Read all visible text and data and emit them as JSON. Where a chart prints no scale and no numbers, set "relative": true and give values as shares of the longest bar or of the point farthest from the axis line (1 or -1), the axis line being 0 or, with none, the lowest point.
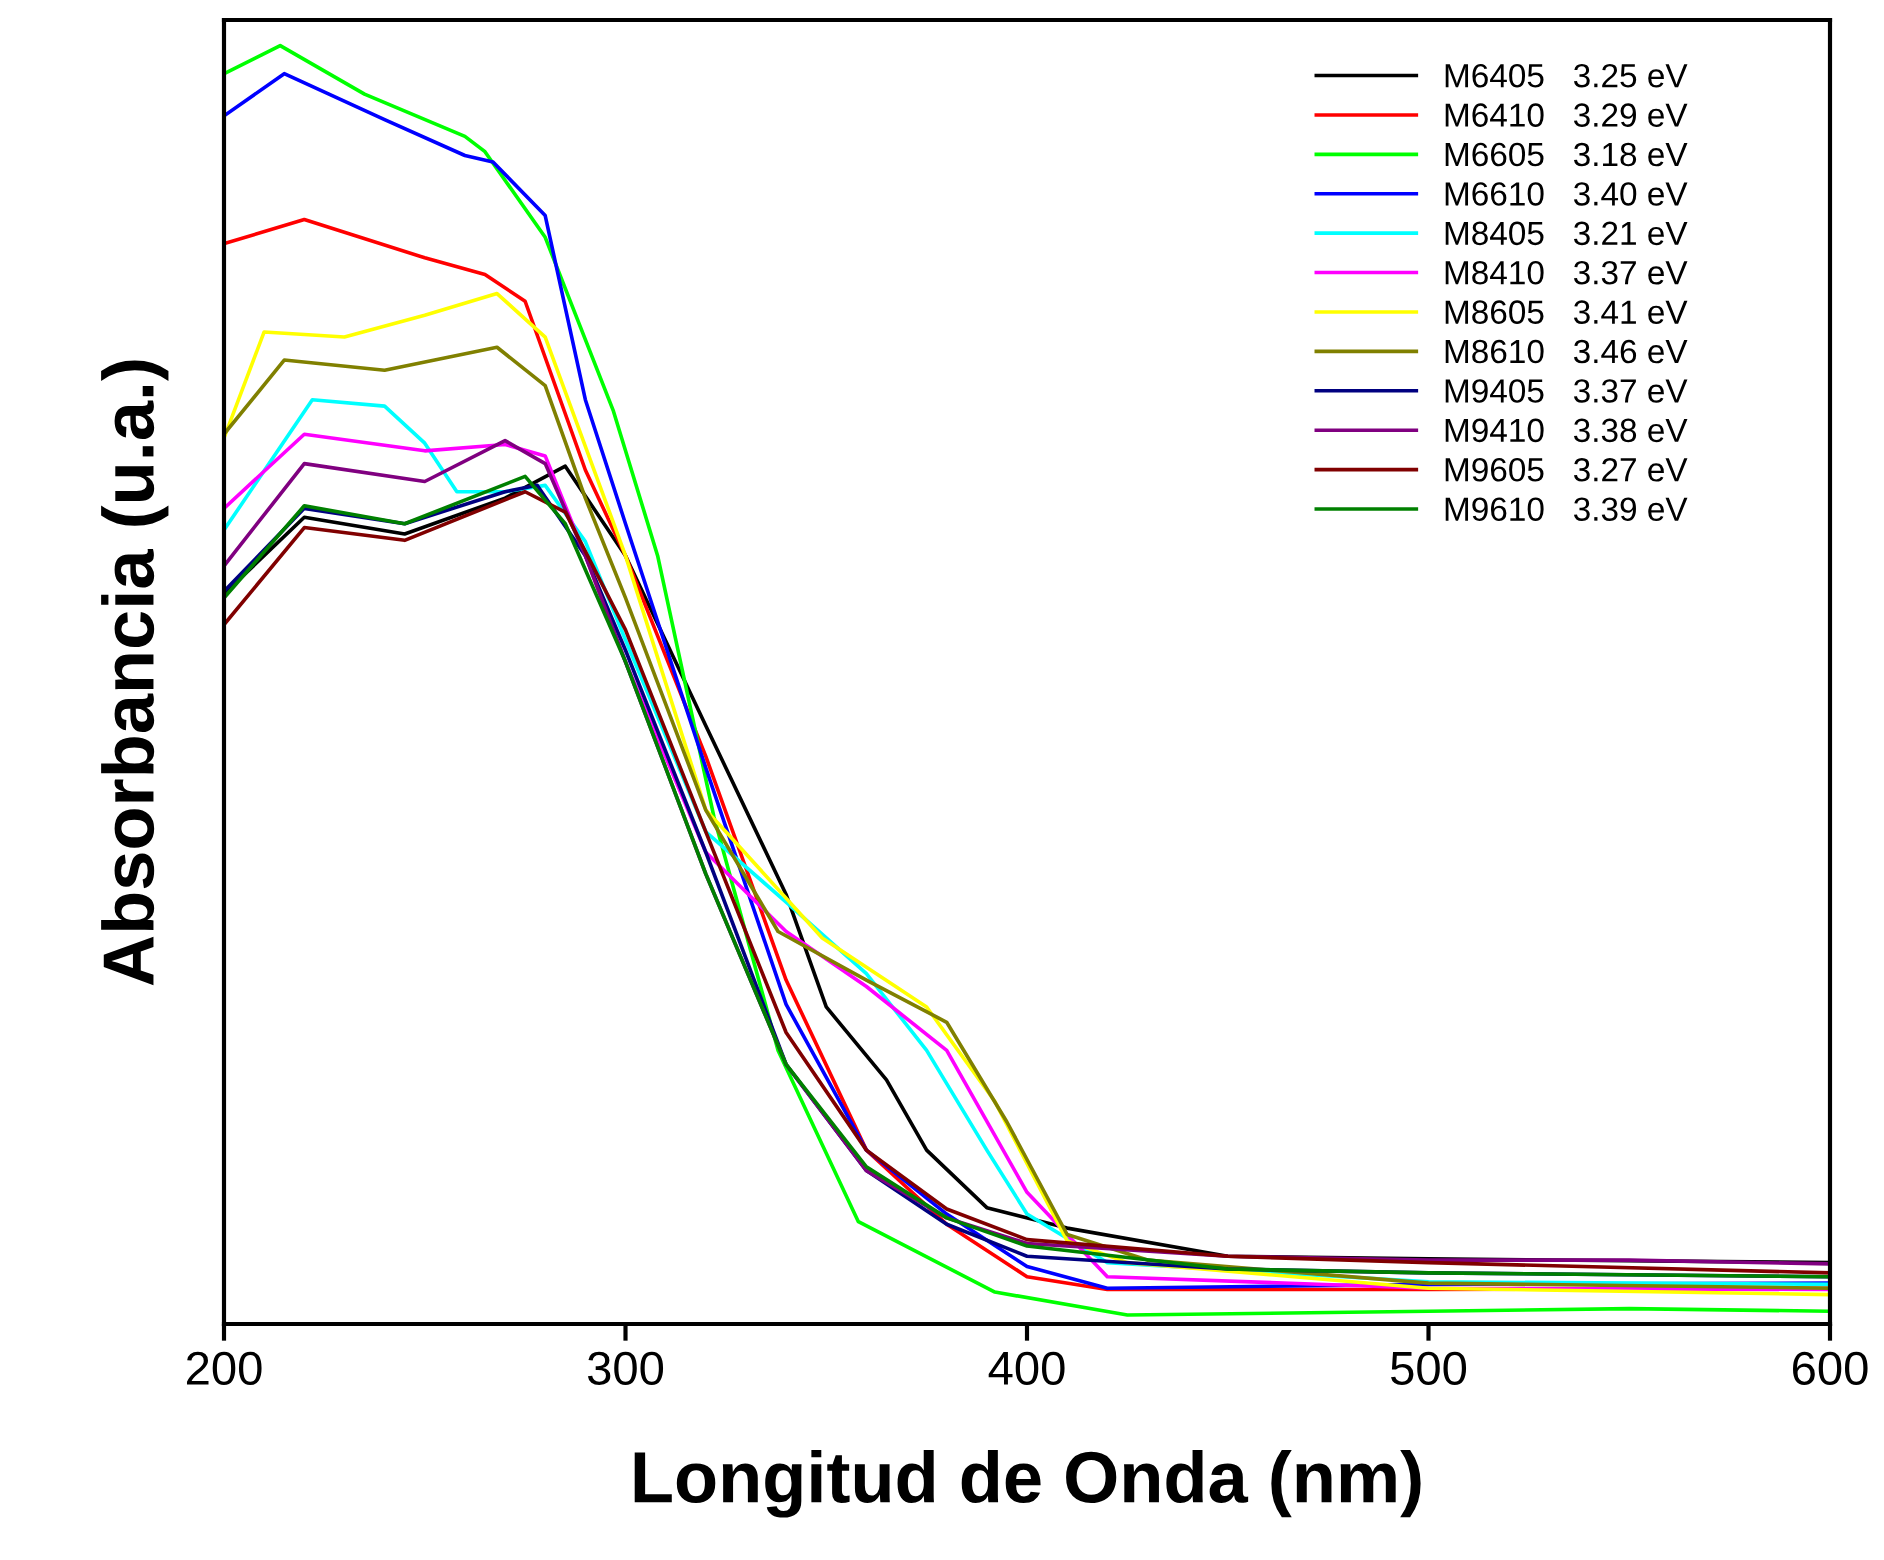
{
  "chart_data": {
    "type": "line",
    "xlabel": "Longitud de Onda (nm)",
    "ylabel": "Absorbancia (u.a.)",
    "relative": true,
    "xlim": [
      200,
      600
    ],
    "xticks": [
      200,
      300,
      400,
      500,
      600
    ],
    "legend": "top right",
    "grid": false,
    "series": [
      {
        "name": "M6405   3.25 eV",
        "color": "#000000",
        "x": [
          200,
          220,
          245,
          270,
          285,
          300,
          320,
          340,
          350,
          365,
          375,
          390,
          410,
          450,
          500,
          600
        ],
        "values": [
          0.571,
          0.631,
          0.618,
          0.646,
          0.671,
          0.601,
          0.468,
          0.336,
          0.248,
          0.191,
          0.136,
          0.091,
          0.075,
          0.053,
          0.051,
          0.048
        ]
      },
      {
        "name": "M6410   3.29 eV",
        "color": "#ff0000",
        "x": [
          200,
          220,
          250,
          265,
          275,
          290,
          300,
          320,
          340,
          360,
          380,
          400,
          420,
          500,
          600
        ],
        "values": [
          0.845,
          0.864,
          0.834,
          0.821,
          0.8,
          0.668,
          0.601,
          0.444,
          0.269,
          0.136,
          0.078,
          0.037,
          0.027,
          0.027,
          0.028
        ]
      },
      {
        "name": "M6605   3.18 eV",
        "color": "#00ff00",
        "x": [
          200,
          214,
          235,
          260,
          265,
          280,
          297,
          308,
          322,
          338,
          358,
          392,
          425,
          500,
          550,
          600
        ],
        "values": [
          0.978,
          1.0,
          0.962,
          0.929,
          0.917,
          0.85,
          0.714,
          0.601,
          0.397,
          0.214,
          0.08,
          0.025,
          0.007,
          0.01,
          0.012,
          0.01
        ]
      },
      {
        "name": "M6610   3.40 eV",
        "color": "#0000ff",
        "x": [
          200,
          215,
          240,
          260,
          267,
          280,
          290,
          300,
          320,
          340,
          360,
          380,
          400,
          420,
          500,
          600
        ],
        "values": [
          0.945,
          0.978,
          0.942,
          0.914,
          0.909,
          0.867,
          0.723,
          0.626,
          0.435,
          0.25,
          0.136,
          0.086,
          0.045,
          0.028,
          0.031,
          0.032
        ]
      },
      {
        "name": "M8405   3.21 eV",
        "color": "#00ffff",
        "x": [
          200,
          222,
          240,
          250,
          258,
          270,
          280,
          290,
          300,
          320,
          340,
          360,
          375,
          390,
          400,
          420,
          500,
          600
        ],
        "values": [
          0.621,
          0.723,
          0.718,
          0.689,
          0.651,
          0.651,
          0.656,
          0.612,
          0.535,
          0.385,
          0.33,
          0.274,
          0.214,
          0.136,
          0.086,
          0.048,
          0.033,
          0.031
        ]
      },
      {
        "name": "M8410   3.37 eV",
        "color": "#ff00ff",
        "x": [
          200,
          220,
          250,
          270,
          280,
          290,
          300,
          320,
          340,
          360,
          380,
          400,
          420,
          500,
          600
        ],
        "values": [
          0.638,
          0.696,
          0.683,
          0.688,
          0.679,
          0.601,
          0.518,
          0.369,
          0.307,
          0.264,
          0.214,
          0.103,
          0.037,
          0.028,
          0.027
        ]
      },
      {
        "name": "M8605   3.41 eV",
        "color": "#ffff00",
        "x": [
          200,
          210,
          230,
          250,
          268,
          280,
          300,
          320,
          325,
          349,
          375,
          392,
          410,
          425,
          500,
          600
        ],
        "values": [
          0.693,
          0.776,
          0.772,
          0.789,
          0.806,
          0.772,
          0.601,
          0.402,
          0.385,
          0.302,
          0.248,
          0.174,
          0.065,
          0.048,
          0.028,
          0.023
        ]
      },
      {
        "name": "M8610   3.46 eV",
        "color": "#808000",
        "x": [
          200,
          215,
          240,
          268,
          280,
          290,
          300,
          320,
          338,
          360,
          380,
          395,
          410,
          430,
          500,
          600
        ],
        "values": [
          0.696,
          0.754,
          0.746,
          0.764,
          0.734,
          0.646,
          0.568,
          0.402,
          0.307,
          0.269,
          0.236,
          0.158,
          0.07,
          0.05,
          0.032,
          0.028
        ]
      },
      {
        "name": "M9405   3.37 eV",
        "color": "#000080",
        "x": [
          200,
          220,
          245,
          270,
          278,
          290,
          300,
          320,
          340,
          360,
          380,
          400,
          450,
          500,
          600
        ],
        "values": [
          0.573,
          0.638,
          0.626,
          0.651,
          0.656,
          0.601,
          0.527,
          0.369,
          0.203,
          0.12,
          0.078,
          0.053,
          0.043,
          0.04,
          0.037
        ]
      },
      {
        "name": "M9410   3.38 eV",
        "color": "#800080",
        "x": [
          200,
          220,
          250,
          270,
          280,
          290,
          300,
          320,
          340,
          360,
          380,
          400,
          450,
          500,
          550,
          600
        ],
        "values": [
          0.593,
          0.673,
          0.659,
          0.691,
          0.673,
          0.601,
          0.518,
          0.352,
          0.203,
          0.12,
          0.083,
          0.063,
          0.053,
          0.05,
          0.05,
          0.047
        ]
      },
      {
        "name": "M9605   3.27 eV",
        "color": "#800000",
        "x": [
          200,
          220,
          245,
          275,
          285,
          300,
          320,
          340,
          360,
          380,
          400,
          450,
          500,
          600
        ],
        "values": [
          0.547,
          0.623,
          0.613,
          0.651,
          0.635,
          0.543,
          0.385,
          0.228,
          0.136,
          0.09,
          0.066,
          0.053,
          0.048,
          0.04
        ]
      },
      {
        "name": "M9610   3.39 eV",
        "color": "#008000",
        "x": [
          200,
          220,
          245,
          275,
          285,
          300,
          320,
          340,
          360,
          380,
          400,
          450,
          500,
          600
        ],
        "values": [
          0.568,
          0.64,
          0.626,
          0.663,
          0.626,
          0.518,
          0.352,
          0.203,
          0.123,
          0.083,
          0.061,
          0.043,
          0.04,
          0.037
        ]
      }
    ]
  }
}
